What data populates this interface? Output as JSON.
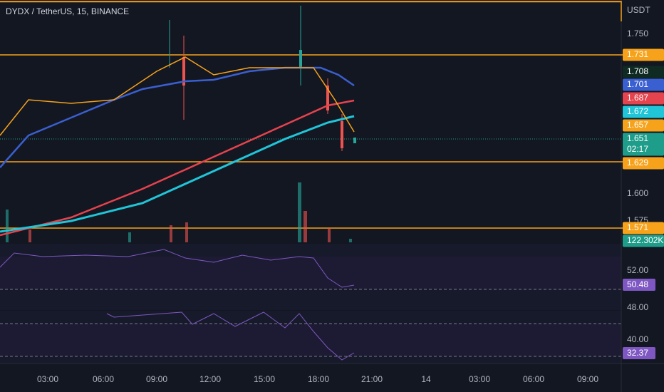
{
  "header": {
    "title": "DYDX / TetherUS, 15, BINANCE"
  },
  "price_axis": {
    "unit": "USDT",
    "labels": [
      "1.750",
      "1.600",
      "1.575"
    ]
  },
  "price_tags": [
    {
      "label": "1.731",
      "color": "#f7a21b"
    },
    {
      "label": "1.708",
      "color": "#0f2a22"
    },
    {
      "label": "1.701",
      "color": "#3a5fd0"
    },
    {
      "label": "1.687",
      "color": "#e5434d"
    },
    {
      "label": "1.672",
      "color": "#20c5d8"
    },
    {
      "label": "1.657",
      "color": "#f7a21b"
    },
    {
      "label": "1.651",
      "sub": "02:17",
      "color": "#1e9e8a"
    },
    {
      "label": "1.629",
      "color": "#f7a21b"
    },
    {
      "label": "1.571",
      "color": "#f7a21b"
    },
    {
      "label": "122.302K",
      "color": "#1e9e8a"
    }
  ],
  "rsi_pane": {
    "labels": [
      "52.00"
    ],
    "tag": "50.48"
  },
  "second_pane": {
    "labels": [
      "48.00",
      "40.00"
    ],
    "tag": "32.37"
  },
  "time_axis": [
    "03:00",
    "06:00",
    "09:00",
    "12:00",
    "15:00",
    "18:00",
    "21:00",
    "14",
    "03:00",
    "06:00",
    "09:00"
  ]
}
